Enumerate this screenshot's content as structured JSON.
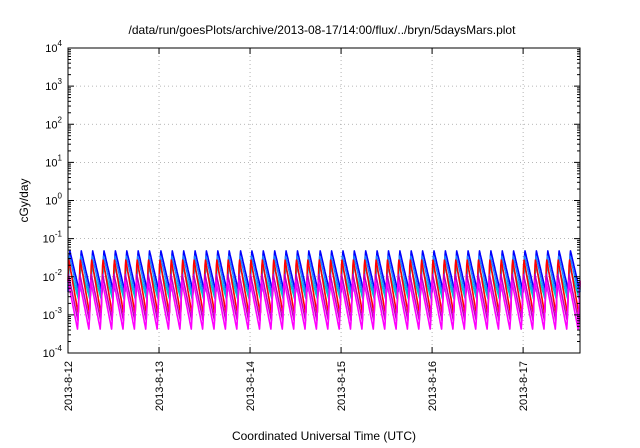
{
  "chart_data": {
    "type": "line",
    "title": "/data/run/goesPlots/archive/2013-08-17/14:00/flux/../bryn/5daysMars.plot",
    "xlabel": "Coordinated Universal Time (UTC)",
    "ylabel": "cGy/day",
    "x_scale": "time",
    "y_scale": "log",
    "xlim": [
      "2013-08-12T00:00",
      "2013-08-17T15:00"
    ],
    "ylim": [
      0.0001,
      10000
    ],
    "x_ticks": [
      "2013-8-12",
      "2013-8-13",
      "2013-8-14",
      "2013-8-15",
      "2013-8-16",
      "2013-8-17"
    ],
    "y_ticks": [
      {
        "base": "10",
        "exp": "-4"
      },
      {
        "base": "10",
        "exp": "-3"
      },
      {
        "base": "10",
        "exp": "-2"
      },
      {
        "base": "10",
        "exp": "-1"
      },
      {
        "base": "10",
        "exp": "0"
      },
      {
        "base": "10",
        "exp": "1"
      },
      {
        "base": "10",
        "exp": "2"
      },
      {
        "base": "10",
        "exp": "3"
      },
      {
        "base": "10",
        "exp": "4"
      }
    ],
    "grid": true,
    "pattern": {
      "period_hours": 3,
      "description_source": "sawtooth oscillation of each series across the full time range"
    },
    "series": [
      {
        "color": "#0000ff",
        "peak": 0.05,
        "trough": 0.004
      },
      {
        "color": "#2080ff",
        "peak": 0.035,
        "trough": 0.003
      },
      {
        "color": "#00c8c8",
        "peak": 0.02,
        "trough": 0.0025
      },
      {
        "color": "#ff0000",
        "peak": 0.03,
        "trough": 0.001
      },
      {
        "color": "#c000c0",
        "peak": 0.012,
        "trough": 0.0007
      },
      {
        "color": "#ff00ff",
        "peak": 0.008,
        "trough": 0.0004
      }
    ]
  }
}
